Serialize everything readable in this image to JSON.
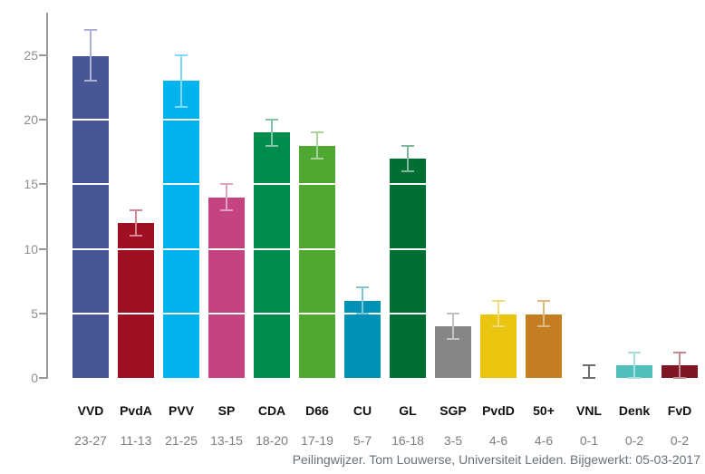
{
  "caption": "Peilingwijzer. Tom Louwerse, Universiteit Leiden. Bijgewerkt: 05-03-2017",
  "colors": {
    "axis": "#999999",
    "gridline": "#ffffff",
    "tick_label": "#8e8e8e",
    "party_label": "#111111",
    "range_label": "#7d7d7d",
    "caption": "#68707a"
  },
  "chart_data": {
    "type": "bar",
    "title": "",
    "xlabel": "",
    "ylabel": "",
    "ylim": [
      0,
      28.3
    ],
    "y_ticks": [
      0,
      5,
      10,
      15,
      20,
      25
    ],
    "grid": "white lines over bars at multiples of 5",
    "legend": "none",
    "caption": "Peilingwijzer. Tom Louwerse, Universiteit Leiden. Bijgewerkt: 05-03-2017",
    "categories": [
      "VVD",
      "PvdA",
      "PVV",
      "SP",
      "CDA",
      "D66",
      "CU",
      "GL",
      "SGP",
      "PvdD",
      "50+",
      "VNL",
      "Denk",
      "FvD"
    ],
    "values": [
      25,
      12,
      23,
      14,
      19,
      18,
      6,
      17,
      4,
      5,
      5,
      0,
      1,
      1
    ],
    "ranges": [
      "23-27",
      "11-13",
      "21-25",
      "13-15",
      "18-20",
      "17-19",
      "5-7",
      "16-18",
      "3-5",
      "4-6",
      "4-6",
      "0-1",
      "0-2",
      "0-2"
    ],
    "parties": [
      {
        "label": "VVD",
        "range": "23-27",
        "value": 25,
        "low": 23,
        "high": 27,
        "color": "#485696",
        "error_color": "#a9b1d4"
      },
      {
        "label": "PvdA",
        "range": "11-13",
        "value": 12,
        "low": 11,
        "high": 13,
        "color": "#a00e22",
        "error_color": "#cf8791"
      },
      {
        "label": "PVV",
        "range": "21-25",
        "value": 23,
        "low": 21,
        "high": 25,
        "color": "#00b2ee",
        "error_color": "#80d8f6"
      },
      {
        "label": "SP",
        "range": "13-15",
        "value": 14,
        "low": 13,
        "high": 15,
        "color": "#c64381",
        "error_color": "#e2a1c0"
      },
      {
        "label": "CDA",
        "range": "18-20",
        "value": 19,
        "low": 18,
        "high": 20,
        "color": "#008c4c",
        "error_color": "#80c5a5"
      },
      {
        "label": "D66",
        "range": "17-19",
        "value": 18,
        "low": 17,
        "high": 19,
        "color": "#4fa832",
        "error_color": "#a7d398"
      },
      {
        "label": "CU",
        "range": "5-7",
        "value": 6,
        "low": 5,
        "high": 7,
        "color": "#0092b4",
        "error_color": "#80c8d9"
      },
      {
        "label": "GL",
        "range": "16-18",
        "value": 17,
        "low": 16,
        "high": 18,
        "color": "#006f34",
        "error_color": "#80b79a"
      },
      {
        "label": "SGP",
        "range": "3-5",
        "value": 4,
        "low": 3,
        "high": 5,
        "color": "#868686",
        "error_color": "#c2c2c2"
      },
      {
        "label": "PvdD",
        "range": "4-6",
        "value": 5,
        "low": 4,
        "high": 6,
        "color": "#e9c510",
        "error_color": "#f2dc7a"
      },
      {
        "label": "50+",
        "range": "4-6",
        "value": 5,
        "low": 4,
        "high": 6,
        "color": "#c47d21",
        "error_color": "#dcb983"
      },
      {
        "label": "VNL",
        "range": "0-1",
        "value": 0,
        "low": 0,
        "high": 1,
        "color": "#666666",
        "error_color": "#6e6e6e"
      },
      {
        "label": "Denk",
        "range": "0-2",
        "value": 1,
        "low": 0,
        "high": 2,
        "color": "#4fc0bd",
        "error_color": "#a7dfde"
      },
      {
        "label": "FvD",
        "range": "0-2",
        "value": 1,
        "low": 0,
        "high": 2,
        "color": "#801623",
        "error_color": "#bf8a91"
      }
    ]
  }
}
